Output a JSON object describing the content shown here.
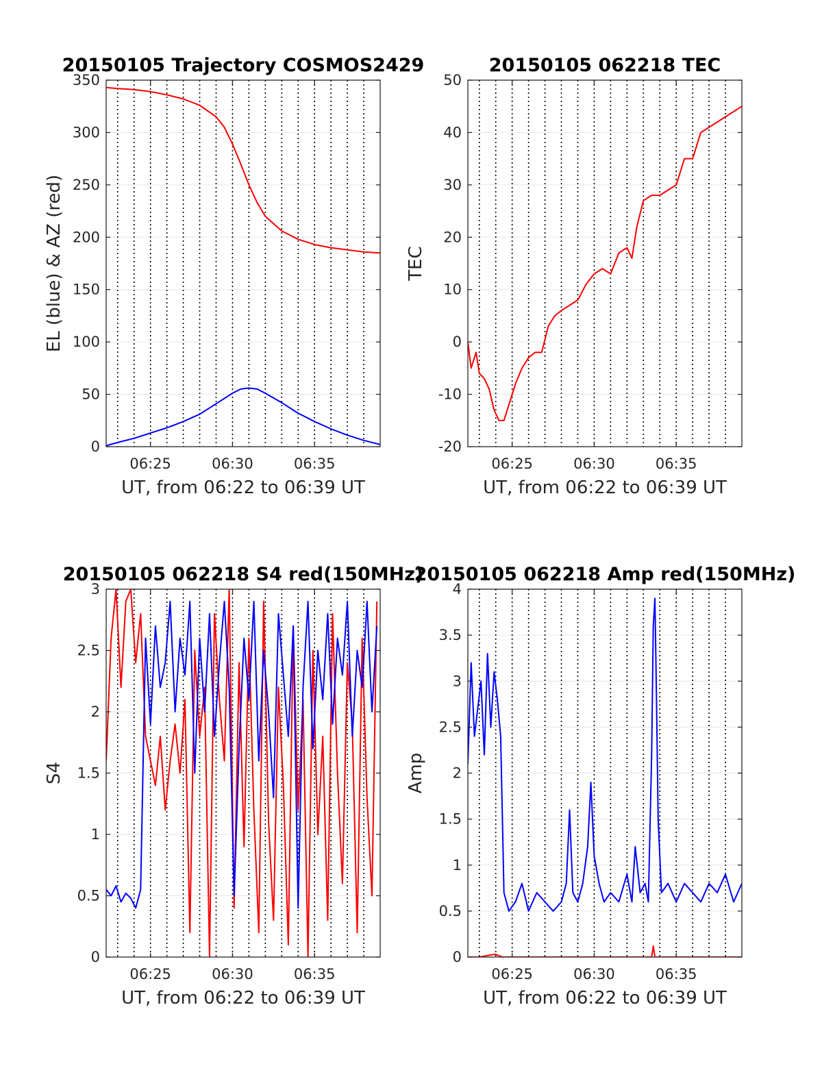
{
  "figure": {
    "panels": [
      {
        "id": "trajectory",
        "title": "20150105 Trajectory COSMOS2429",
        "xlabel": "UT, from 06:22 to 06:39 UT",
        "ylabel": "EL (blue) & AZ (red)",
        "xticks": [
          "06:25",
          "06:30",
          "06:35"
        ],
        "yticks": [
          "0",
          "50",
          "100",
          "150",
          "200",
          "250",
          "300",
          "350"
        ]
      },
      {
        "id": "tec",
        "title": "20150105 062218 TEC",
        "xlabel": "UT, from 06:22 to 06:39 UT",
        "ylabel": "TEC",
        "xticks": [
          "06:25",
          "06:30",
          "06:35"
        ],
        "yticks": [
          "-20",
          "-10",
          "0",
          "10",
          "20",
          "30",
          "40",
          "50"
        ]
      },
      {
        "id": "s4",
        "title": "20150105 062218 S4 red(150MHz)",
        "xlabel": "UT, from 06:22 to 06:39 UT",
        "ylabel": "S4",
        "xticks": [
          "06:25",
          "06:30",
          "06:35"
        ],
        "yticks": [
          "0",
          "0.5",
          "1",
          "1.5",
          "2",
          "2.5",
          "3"
        ]
      },
      {
        "id": "amp",
        "title": "20150105 062218 Amp red(150MHz)",
        "xlabel": "UT, from 06:22 to 06:39 UT",
        "ylabel": "Amp",
        "xticks": [
          "06:25",
          "06:30",
          "06:35"
        ],
        "yticks": [
          "0",
          "0.5",
          "1",
          "1.5",
          "2",
          "2.5",
          "3",
          "3.5",
          "4"
        ]
      }
    ]
  },
  "chart_data": [
    {
      "type": "line",
      "title": "20150105 Trajectory COSMOS2429",
      "xlabel": "UT, from 06:22 to 06:39 UT",
      "ylabel": "EL (blue) & AZ (red)",
      "x_unit": "minutes after 06:00 UT",
      "xlim": [
        22.3,
        39.0
      ],
      "ylim": [
        0,
        350
      ],
      "grid": true,
      "vertical_dotted_lines_minutes": [
        23,
        24,
        25,
        26,
        27,
        28,
        29,
        30,
        31,
        32,
        33,
        34,
        35,
        36,
        37,
        38
      ],
      "series": [
        {
          "color": "#ff0000",
          "x": [
            22.3,
            23,
            24,
            25,
            26,
            27,
            28,
            29,
            29.5,
            30,
            30.5,
            31,
            31.5,
            32,
            33,
            34,
            35,
            36,
            37,
            38,
            39
          ],
          "values": [
            343,
            342,
            341,
            339,
            336,
            332,
            326,
            315,
            305,
            289,
            270,
            250,
            233,
            220,
            206,
            198,
            193,
            190,
            188,
            186,
            185
          ]
        },
        {
          "color": "#0000ff",
          "x": [
            22.3,
            23,
            24,
            25,
            26,
            27,
            28,
            29,
            30,
            30.5,
            31,
            31.5,
            32,
            33,
            34,
            35,
            36,
            37,
            38,
            39
          ],
          "values": [
            1,
            4,
            8,
            13,
            18,
            24,
            31,
            41,
            51,
            55,
            56,
            55,
            51,
            42,
            32,
            24,
            17,
            11,
            6,
            2
          ]
        }
      ]
    },
    {
      "type": "line",
      "title": "20150105 062218 TEC",
      "xlabel": "UT, from 06:22 to 06:39 UT",
      "ylabel": "TEC",
      "x_unit": "minutes after 06:00 UT",
      "xlim": [
        22.3,
        39.0
      ],
      "ylim": [
        -20,
        50
      ],
      "grid": true,
      "vertical_dotted_lines_minutes": [
        23,
        24,
        25,
        26,
        27,
        28,
        29,
        30,
        31,
        32,
        33,
        34,
        35,
        36,
        37,
        38
      ],
      "series": [
        {
          "color": "#ff0000",
          "x": [
            22.3,
            22.5,
            22.8,
            23.0,
            23.3,
            23.6,
            23.9,
            24.2,
            24.5,
            24.8,
            25.2,
            25.6,
            26.0,
            26.4,
            26.8,
            27.2,
            27.6,
            28.0,
            28.5,
            29.0,
            29.5,
            30.0,
            30.5,
            31.0,
            31.5,
            32.0,
            32.3,
            32.6,
            33.0,
            33.5,
            34.0,
            34.5,
            35.0,
            35.5,
            36.0,
            36.5,
            37.0,
            37.5,
            38.0,
            38.5,
            39.0
          ],
          "values": [
            0,
            -5,
            -2,
            -6,
            -7,
            -9,
            -13,
            -15,
            -15,
            -12,
            -8,
            -5,
            -3,
            -2,
            -2,
            3,
            5,
            6,
            7,
            8,
            11,
            13,
            14,
            13,
            17,
            18,
            16,
            22,
            27,
            28,
            28,
            29,
            30,
            35,
            35,
            40,
            41,
            42,
            43,
            44,
            45
          ]
        }
      ]
    },
    {
      "type": "line",
      "title": "20150105 062218 S4 red(150MHz)",
      "xlabel": "UT, from 06:22 to 06:39 UT",
      "ylabel": "S4",
      "x_unit": "minutes after 06:00 UT",
      "xlim": [
        22.3,
        39.0
      ],
      "ylim": [
        0,
        3
      ],
      "grid": true,
      "vertical_dotted_lines_minutes": [
        23,
        24,
        25,
        26,
        27,
        28,
        29,
        30,
        31,
        32,
        33,
        34,
        35,
        36,
        37,
        38
      ],
      "series": [
        {
          "color": "#ff0000",
          "x": [
            22.3,
            22.6,
            22.9,
            23.2,
            23.5,
            23.8,
            24.1,
            24.4,
            24.7,
            25.0,
            25.3,
            25.6,
            25.9,
            26.2,
            26.5,
            26.8,
            27.1,
            27.4,
            27.7,
            28.0,
            28.3,
            28.6,
            28.9,
            29.2,
            29.5,
            29.8,
            30.1,
            30.4,
            30.7,
            31.0,
            31.3,
            31.6,
            31.9,
            32.2,
            32.5,
            32.8,
            33.1,
            33.4,
            33.7,
            34.0,
            34.3,
            34.6,
            34.9,
            35.2,
            35.5,
            35.8,
            36.1,
            36.4,
            36.7,
            37.0,
            37.3,
            37.6,
            37.9,
            38.2,
            38.5,
            38.8
          ],
          "values": [
            1.6,
            2.6,
            3.0,
            2.2,
            2.9,
            3.0,
            2.4,
            2.8,
            1.8,
            1.6,
            1.4,
            1.8,
            1.2,
            1.6,
            1.9,
            1.5,
            2.1,
            0.2,
            2.5,
            1.8,
            2.2,
            0.0,
            2.8,
            2.1,
            1.6,
            3.0,
            0.4,
            2.4,
            0.9,
            2.6,
            1.2,
            0.2,
            2.9,
            1.1,
            0.3,
            2.2,
            1.4,
            0.1,
            2.7,
            1.2,
            2.1,
            0.0,
            2.5,
            1.0,
            1.8,
            0.3,
            2.8,
            1.5,
            0.6,
            2.4,
            1.9,
            0.2,
            2.6,
            1.3,
            0.5,
            2.9
          ]
        },
        {
          "color": "#0000ff",
          "x": [
            22.3,
            22.6,
            22.9,
            23.2,
            23.5,
            23.8,
            24.1,
            24.4,
            24.7,
            25.0,
            25.3,
            25.6,
            25.9,
            26.2,
            26.5,
            26.8,
            27.1,
            27.4,
            27.7,
            28.0,
            28.3,
            28.6,
            28.9,
            29.2,
            29.5,
            29.8,
            30.1,
            30.4,
            30.7,
            31.0,
            31.3,
            31.6,
            31.9,
            32.2,
            32.5,
            32.8,
            33.1,
            33.4,
            33.7,
            34.0,
            34.3,
            34.6,
            34.9,
            35.2,
            35.5,
            35.8,
            36.1,
            36.4,
            36.7,
            37.0,
            37.3,
            37.6,
            37.9,
            38.2,
            38.5,
            38.8
          ],
          "values": [
            0.55,
            0.5,
            0.58,
            0.45,
            0.52,
            0.48,
            0.4,
            0.55,
            2.6,
            1.9,
            2.7,
            2.2,
            2.4,
            2.9,
            2.0,
            2.6,
            2.3,
            2.9,
            1.5,
            2.6,
            2.0,
            2.8,
            1.8,
            2.4,
            2.9,
            2.2,
            0.5,
            1.7,
            2.6,
            2.1,
            2.9,
            1.6,
            2.5,
            2.0,
            1.3,
            2.8,
            2.3,
            1.8,
            2.7,
            0.4,
            2.2,
            2.9,
            1.7,
            2.5,
            2.1,
            2.8,
            1.9,
            2.6,
            2.3,
            2.9,
            1.8,
            2.5,
            2.2,
            2.9,
            2.0,
            2.7
          ]
        }
      ]
    },
    {
      "type": "line",
      "title": "20150105 062218 Amp red(150MHz)",
      "xlabel": "UT, from 06:22 to 06:39 UT",
      "ylabel": "Amp",
      "x_unit": "minutes after 06:00 UT",
      "xlim": [
        22.3,
        39.0
      ],
      "ylim": [
        0,
        4
      ],
      "grid": true,
      "vertical_dotted_lines_minutes": [
        23,
        24,
        25,
        26,
        27,
        28,
        29,
        30,
        31,
        32,
        33,
        34,
        35,
        36,
        37,
        38
      ],
      "series": [
        {
          "color": "#ff0000",
          "x": [
            22.3,
            23.0,
            23.6,
            24.0,
            24.4,
            25.0,
            30.0,
            33.5,
            33.6,
            33.7,
            39.0
          ],
          "values": [
            0.0,
            0.0,
            0.02,
            0.03,
            0.0,
            0.0,
            0.0,
            0.0,
            0.12,
            0.0,
            0.0
          ]
        },
        {
          "color": "#0000ff",
          "x": [
            22.3,
            22.5,
            22.7,
            22.9,
            23.1,
            23.3,
            23.5,
            23.7,
            23.9,
            24.1,
            24.3,
            24.5,
            24.8,
            25.2,
            25.6,
            26.0,
            26.5,
            27.0,
            27.5,
            28.0,
            28.3,
            28.5,
            28.7,
            29.0,
            29.3,
            29.6,
            29.8,
            30.0,
            30.3,
            30.6,
            31.0,
            31.5,
            32.0,
            32.3,
            32.5,
            32.8,
            33.1,
            33.3,
            33.5,
            33.6,
            33.7,
            33.8,
            33.9,
            34.1,
            34.5,
            35.0,
            35.5,
            36.0,
            36.5,
            37.0,
            37.5,
            38.0,
            38.5,
            39.0
          ],
          "values": [
            2.1,
            3.2,
            2.4,
            2.7,
            3.0,
            2.2,
            3.3,
            2.5,
            3.1,
            2.8,
            2.4,
            0.7,
            0.5,
            0.6,
            0.8,
            0.5,
            0.7,
            0.6,
            0.5,
            0.6,
            0.8,
            1.6,
            0.7,
            0.6,
            0.8,
            1.2,
            1.9,
            1.1,
            0.8,
            0.6,
            0.7,
            0.6,
            0.9,
            0.6,
            1.2,
            0.7,
            0.8,
            0.6,
            2.2,
            3.6,
            3.9,
            2.8,
            1.5,
            0.7,
            0.8,
            0.6,
            0.8,
            0.7,
            0.6,
            0.8,
            0.7,
            0.9,
            0.6,
            0.8
          ]
        }
      ]
    }
  ]
}
